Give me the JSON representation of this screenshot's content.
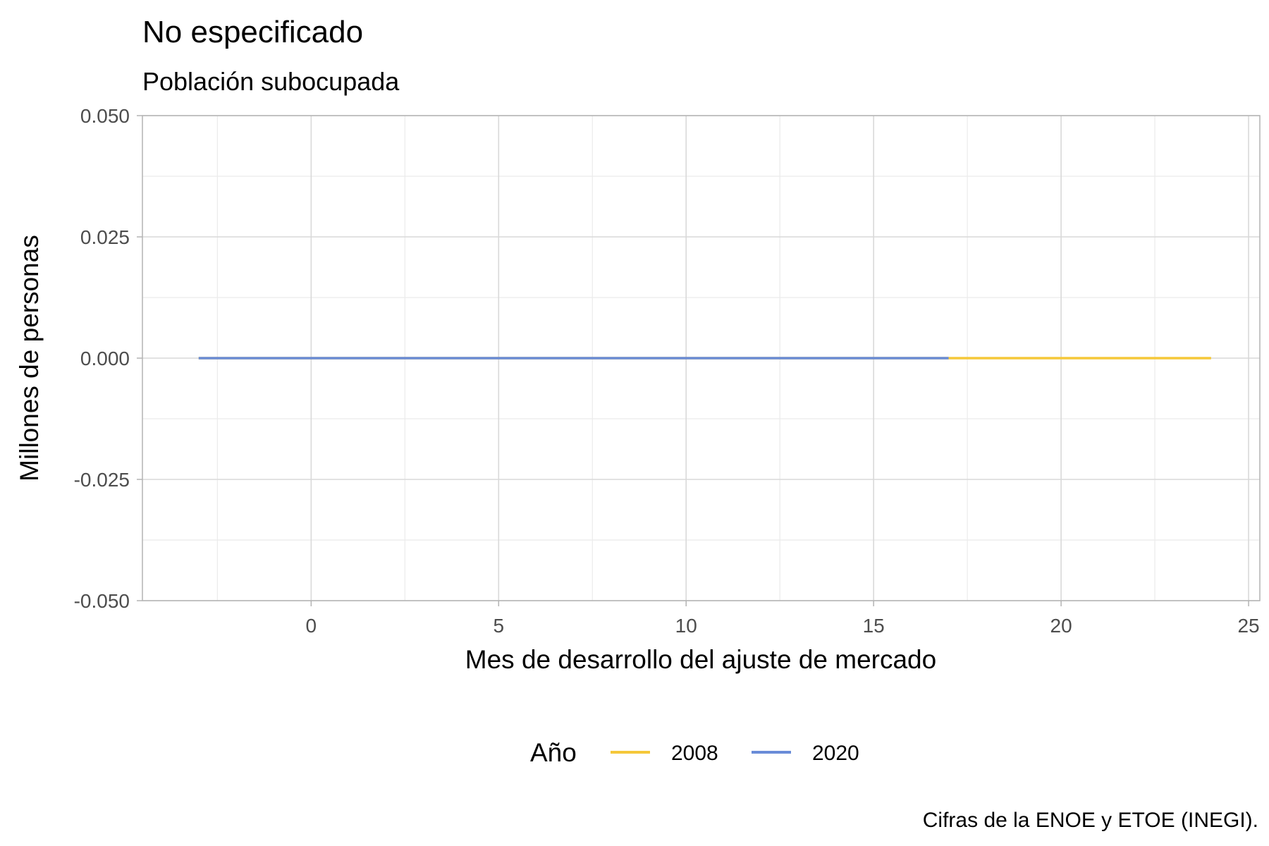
{
  "chart_data": {
    "type": "line",
    "title": "No especificado",
    "subtitle": "Población subocupada",
    "xlabel": "Mes de desarrollo del ajuste de mercado",
    "ylabel": "Millones de personas",
    "caption": "Cifras de la ENOE y ETOE (INEGI).",
    "xlim": [
      -4.5,
      25.3
    ],
    "ylim": [
      -0.05,
      0.05
    ],
    "x_ticks": [
      0,
      5,
      10,
      15,
      20,
      25
    ],
    "x_tick_labels": [
      "0",
      "5",
      "10",
      "15",
      "20",
      "25"
    ],
    "y_ticks": [
      -0.05,
      -0.025,
      0,
      0.025,
      0.05
    ],
    "y_tick_labels": [
      "-0.050",
      "-0.025",
      "0.000",
      "0.025",
      "0.050"
    ],
    "grid": true,
    "legend": {
      "title": "Año",
      "position": "bottom"
    },
    "series": [
      {
        "name": "2008",
        "color": "#f5c83a",
        "x": [
          -3,
          24
        ],
        "y": [
          0,
          0
        ]
      },
      {
        "name": "2020",
        "color": "#6a8cd8",
        "x": [
          -3,
          17
        ],
        "y": [
          0,
          0
        ]
      }
    ]
  }
}
